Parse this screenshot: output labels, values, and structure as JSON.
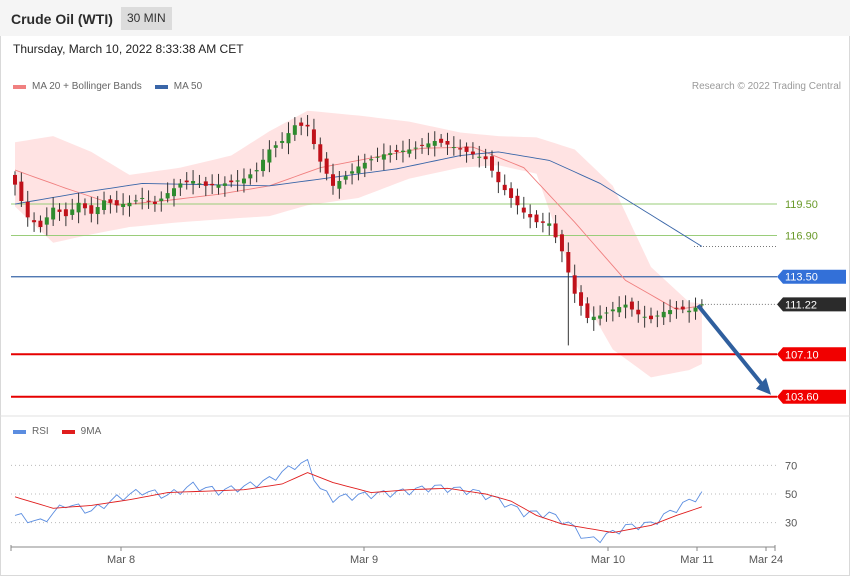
{
  "header": {
    "title": "Crude Oil (WTI)",
    "timeframe": "30 MIN"
  },
  "timestamp": "Thursday, March 10, 2022 8:33:38 AM CET",
  "copyright": "Research © 2022 Trading Central",
  "legend_main": [
    {
      "label": "MA 20 + Bollinger Bands",
      "color": "#f08080"
    },
    {
      "label": "MA 50",
      "color": "#3a66a8"
    }
  ],
  "legend_rsi": [
    {
      "label": "RSI",
      "color": "#5b8de0"
    },
    {
      "label": "9MA",
      "color": "#e01e1e"
    }
  ],
  "colors": {
    "up": "#2e8b2e",
    "down": "#c0111a",
    "resistance": "#3a66a8",
    "support": "#e60000",
    "minor": "#9acd7a",
    "arrow": "#2f5f9e",
    "band": "#ffd9d9"
  },
  "chart_data": [
    {
      "type": "candlestick",
      "title": "Crude Oil (WTI)",
      "x_ticks": [
        "Mar 8",
        "Mar 9",
        "Mar 10",
        "Mar 11",
        "Mar 24"
      ],
      "ylim": [
        103,
        128
      ],
      "levels": [
        {
          "value": 119.5,
          "label": "119.50",
          "kind": "minor"
        },
        {
          "value": 116.9,
          "label": "116.90",
          "kind": "minor"
        },
        {
          "value": 113.5,
          "label": "113.50",
          "kind": "resistance"
        },
        {
          "value": 111.22,
          "label": "111.22",
          "kind": "last"
        },
        {
          "value": 107.1,
          "label": "107.10",
          "kind": "support"
        },
        {
          "value": 103.6,
          "label": "103.60",
          "kind": "support"
        }
      ],
      "close_anchors": [
        [
          0,
          121.1
        ],
        [
          2,
          118.4
        ],
        [
          4,
          117.6
        ],
        [
          6,
          119.2
        ],
        [
          8,
          118.5
        ],
        [
          10,
          119.6
        ],
        [
          12,
          118.7
        ],
        [
          14,
          119.8
        ],
        [
          16,
          119.4
        ],
        [
          18,
          119.6
        ],
        [
          20,
          120.0
        ],
        [
          22,
          119.5
        ],
        [
          24,
          120.4
        ],
        [
          26,
          121.2
        ],
        [
          28,
          121.4
        ],
        [
          30,
          121.0
        ],
        [
          32,
          121.1
        ],
        [
          34,
          121.3
        ],
        [
          36,
          121.6
        ],
        [
          38,
          122.3
        ],
        [
          40,
          124.0
        ],
        [
          42,
          124.7
        ],
        [
          44,
          126.0
        ],
        [
          46,
          125.9
        ],
        [
          48,
          123.0
        ],
        [
          50,
          121.0
        ],
        [
          52,
          121.8
        ],
        [
          54,
          122.6
        ],
        [
          56,
          123.2
        ],
        [
          58,
          123.6
        ],
        [
          60,
          123.8
        ],
        [
          62,
          124.0
        ],
        [
          64,
          124.3
        ],
        [
          66,
          124.7
        ],
        [
          68,
          124.4
        ],
        [
          70,
          124.0
        ],
        [
          72,
          123.6
        ],
        [
          74,
          123.2
        ],
        [
          76,
          121.3
        ],
        [
          78,
          120.0
        ],
        [
          80,
          118.8
        ],
        [
          82,
          118.0
        ],
        [
          84,
          117.9
        ],
        [
          86,
          115.6
        ],
        [
          88,
          112.1
        ],
        [
          90,
          110.1
        ],
        [
          92,
          110.3
        ],
        [
          94,
          110.8
        ],
        [
          96,
          111.2
        ],
        [
          98,
          110.4
        ],
        [
          100,
          110.0
        ],
        [
          102,
          110.6
        ],
        [
          104,
          110.9
        ],
        [
          106,
          110.7
        ],
        [
          108,
          111.22
        ]
      ],
      "ma20_anchors": [
        [
          0,
          122.3
        ],
        [
          8,
          120.8
        ],
        [
          16,
          119.4
        ],
        [
          24,
          119.8
        ],
        [
          32,
          120.3
        ],
        [
          40,
          121.0
        ],
        [
          48,
          122.5
        ],
        [
          56,
          123.3
        ],
        [
          64,
          124.1
        ],
        [
          72,
          124.2
        ],
        [
          80,
          122.5
        ],
        [
          88,
          118.0
        ],
        [
          96,
          113.2
        ],
        [
          104,
          110.8
        ],
        [
          108,
          111.1
        ]
      ],
      "ma50_anchors": [
        [
          0,
          119.5
        ],
        [
          10,
          120.4
        ],
        [
          20,
          121.2
        ],
        [
          30,
          121.1
        ],
        [
          40,
          121.0
        ],
        [
          50,
          121.7
        ],
        [
          60,
          122.4
        ],
        [
          70,
          123.5
        ],
        [
          76,
          123.8
        ],
        [
          84,
          123.1
        ],
        [
          92,
          121.2
        ],
        [
          100,
          118.6
        ],
        [
          108,
          116.0
        ]
      ],
      "bb_upper_anchors": [
        [
          0,
          124.6
        ],
        [
          6,
          125.1
        ],
        [
          12,
          123.8
        ],
        [
          18,
          121.9
        ],
        [
          26,
          122.5
        ],
        [
          34,
          123.5
        ],
        [
          40,
          125.5
        ],
        [
          46,
          127.2
        ],
        [
          54,
          126.8
        ],
        [
          62,
          126.3
        ],
        [
          70,
          125.4
        ],
        [
          76,
          125.1
        ],
        [
          82,
          125.0
        ],
        [
          88,
          124.0
        ],
        [
          94,
          121.0
        ],
        [
          100,
          114.3
        ],
        [
          106,
          111.4
        ],
        [
          108,
          111.3
        ]
      ],
      "bb_lower_anchors": [
        [
          0,
          119.3
        ],
        [
          6,
          116.3
        ],
        [
          12,
          117.0
        ],
        [
          18,
          117.6
        ],
        [
          26,
          118.0
        ],
        [
          34,
          118.3
        ],
        [
          40,
          118.5
        ],
        [
          46,
          119.4
        ],
        [
          54,
          120.0
        ],
        [
          62,
          121.6
        ],
        [
          70,
          122.5
        ],
        [
          76,
          122.7
        ],
        [
          82,
          122.0
        ],
        [
          88,
          113.0
        ],
        [
          94,
          107.5
        ],
        [
          100,
          105.2
        ],
        [
          106,
          105.8
        ],
        [
          108,
          106.3
        ]
      ],
      "forecast_path": [
        [
          111.22
        ],
        [
          103.6
        ]
      ]
    },
    {
      "type": "line",
      "title": "RSI",
      "ylim": [
        15,
        85
      ],
      "y_ticks": [
        70,
        50,
        30
      ],
      "series": [
        {
          "name": "RSI",
          "anchors": [
            [
              0,
              35
            ],
            [
              4,
              30
            ],
            [
              8,
              43
            ],
            [
              12,
              38
            ],
            [
              16,
              47
            ],
            [
              20,
              52
            ],
            [
              24,
              49
            ],
            [
              28,
              56
            ],
            [
              32,
              52
            ],
            [
              36,
              55
            ],
            [
              40,
              60
            ],
            [
              44,
              70
            ],
            [
              46,
              72
            ],
            [
              48,
              53
            ],
            [
              50,
              47
            ],
            [
              54,
              49
            ],
            [
              60,
              51
            ],
            [
              66,
              55
            ],
            [
              72,
              52
            ],
            [
              76,
              46
            ],
            [
              80,
              37
            ],
            [
              84,
              36
            ],
            [
              86,
              32
            ],
            [
              88,
              26
            ],
            [
              90,
              18
            ],
            [
              92,
              19
            ],
            [
              96,
              27
            ],
            [
              100,
              29
            ],
            [
              104,
              40
            ],
            [
              108,
              50
            ]
          ]
        },
        {
          "name": "9MA",
          "anchors": [
            [
              0,
              48
            ],
            [
              6,
              40
            ],
            [
              12,
              42
            ],
            [
              18,
              46
            ],
            [
              24,
              51
            ],
            [
              30,
              52
            ],
            [
              36,
              53
            ],
            [
              42,
              57
            ],
            [
              46,
              65
            ],
            [
              50,
              58
            ],
            [
              56,
              51
            ],
            [
              62,
              53
            ],
            [
              68,
              54
            ],
            [
              74,
              50
            ],
            [
              78,
              45
            ],
            [
              82,
              35
            ],
            [
              86,
              29
            ],
            [
              90,
              26
            ],
            [
              94,
              23
            ],
            [
              100,
              28
            ],
            [
              104,
              35
            ],
            [
              108,
              41
            ]
          ]
        }
      ]
    }
  ]
}
